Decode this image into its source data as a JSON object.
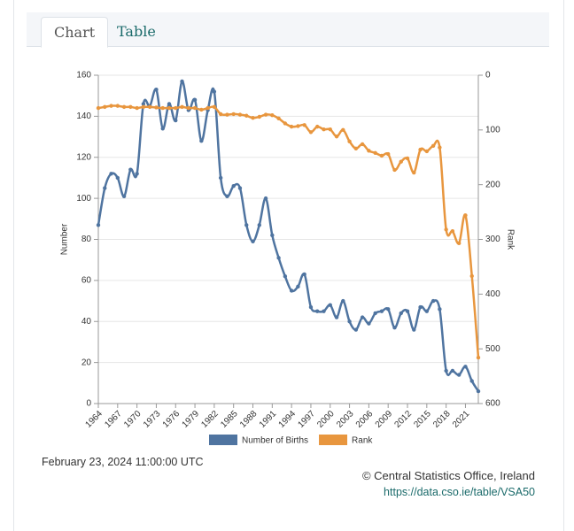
{
  "tabs": [
    "Chart",
    "Table"
  ],
  "chart_data": {
    "type": "line",
    "x": [
      1964,
      1965,
      1966,
      1967,
      1968,
      1969,
      1970,
      1971,
      1972,
      1973,
      1974,
      1975,
      1976,
      1977,
      1978,
      1979,
      1980,
      1981,
      1982,
      1983,
      1984,
      1985,
      1986,
      1987,
      1988,
      1989,
      1990,
      1991,
      1992,
      1993,
      1994,
      1995,
      1996,
      1997,
      1998,
      1999,
      2000,
      2001,
      2002,
      2003,
      2004,
      2005,
      2006,
      2007,
      2008,
      2009,
      2010,
      2011,
      2012,
      2013,
      2014,
      2015,
      2016,
      2017,
      2018,
      2019,
      2020,
      2021,
      2022,
      2023
    ],
    "series": [
      {
        "name": "Number of Births",
        "color": "#4f74a0",
        "axis": "y",
        "values": [
          87,
          105,
          112,
          110,
          101,
          114,
          112,
          146,
          145,
          153,
          134,
          146,
          138,
          157,
          143,
          148,
          128,
          143,
          152,
          110,
          101,
          106,
          105,
          87,
          79,
          87,
          100,
          82,
          71,
          62,
          55,
          57,
          63,
          47,
          45,
          45,
          48,
          42,
          50,
          40,
          36,
          42,
          39,
          44,
          45,
          46,
          37,
          44,
          45,
          36,
          47,
          45,
          50,
          46,
          16,
          16,
          14,
          18,
          11,
          6
        ]
      },
      {
        "name": "Rank",
        "color": "#e8963e",
        "axis": "y2",
        "values": [
          60,
          58,
          56,
          56,
          58,
          58,
          60,
          58,
          58,
          59,
          60,
          60,
          60,
          58,
          60,
          60,
          63,
          60,
          58,
          71,
          72,
          71,
          72,
          74,
          78,
          76,
          72,
          73,
          79,
          88,
          94,
          93,
          91,
          104,
          94,
          99,
          99,
          112,
          100,
          121,
          134,
          126,
          138,
          142,
          147,
          144,
          173,
          158,
          152,
          178,
          136,
          139,
          129,
          132,
          282,
          285,
          307,
          256,
          367,
          516
        ]
      }
    ],
    "xlim": [
      1964,
      2023
    ],
    "xticks": [
      1964,
      1967,
      1970,
      1973,
      1976,
      1979,
      1982,
      1985,
      1988,
      1991,
      1994,
      1997,
      2000,
      2003,
      2006,
      2009,
      2012,
      2015,
      2018,
      2021
    ],
    "ylim": [
      0,
      160
    ],
    "yticks": [
      0,
      20,
      40,
      60,
      80,
      100,
      120,
      140,
      160
    ],
    "y2lim": [
      600,
      0
    ],
    "y2ticks": [
      0,
      100,
      200,
      300,
      400,
      500,
      600
    ],
    "ylabel": "Number",
    "y2label": "Rank",
    "grid": true
  },
  "footer": {
    "timestamp": "February 23, 2024 11:00:00 UTC",
    "source": "© Central Statistics Office, Ireland",
    "link": "https://data.cso.ie/table/VSA50"
  }
}
